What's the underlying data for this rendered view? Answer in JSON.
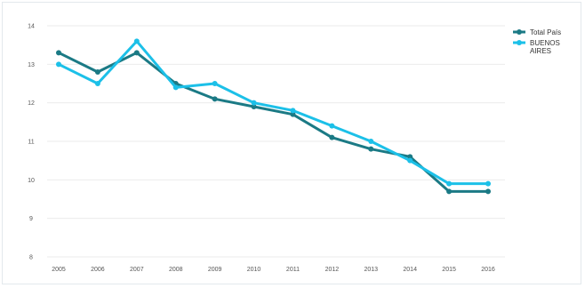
{
  "chart_data": {
    "type": "line",
    "title": "",
    "xlabel": "",
    "ylabel": "",
    "categories": [
      "2005",
      "2006",
      "2007",
      "2008",
      "2009",
      "2010",
      "2011",
      "2012",
      "2013",
      "2014",
      "2015",
      "2016"
    ],
    "ylim": [
      8,
      14
    ],
    "yticks": [
      "8",
      "9",
      "10",
      "11",
      "12",
      "13",
      "14"
    ],
    "grid": "horizontal",
    "legend_position": "top-right",
    "series": [
      {
        "name": "Total País",
        "color": "#1b7a85",
        "values": [
          13.3,
          12.8,
          13.3,
          12.5,
          12.1,
          11.9,
          11.7,
          11.1,
          10.8,
          10.6,
          9.7,
          9.7
        ]
      },
      {
        "name": "BUENOS AIRES",
        "color": "#1cc0e8",
        "values": [
          13.0,
          12.5,
          13.6,
          12.4,
          12.5,
          12.0,
          11.8,
          11.4,
          11.0,
          10.5,
          9.9,
          9.9
        ]
      }
    ]
  }
}
